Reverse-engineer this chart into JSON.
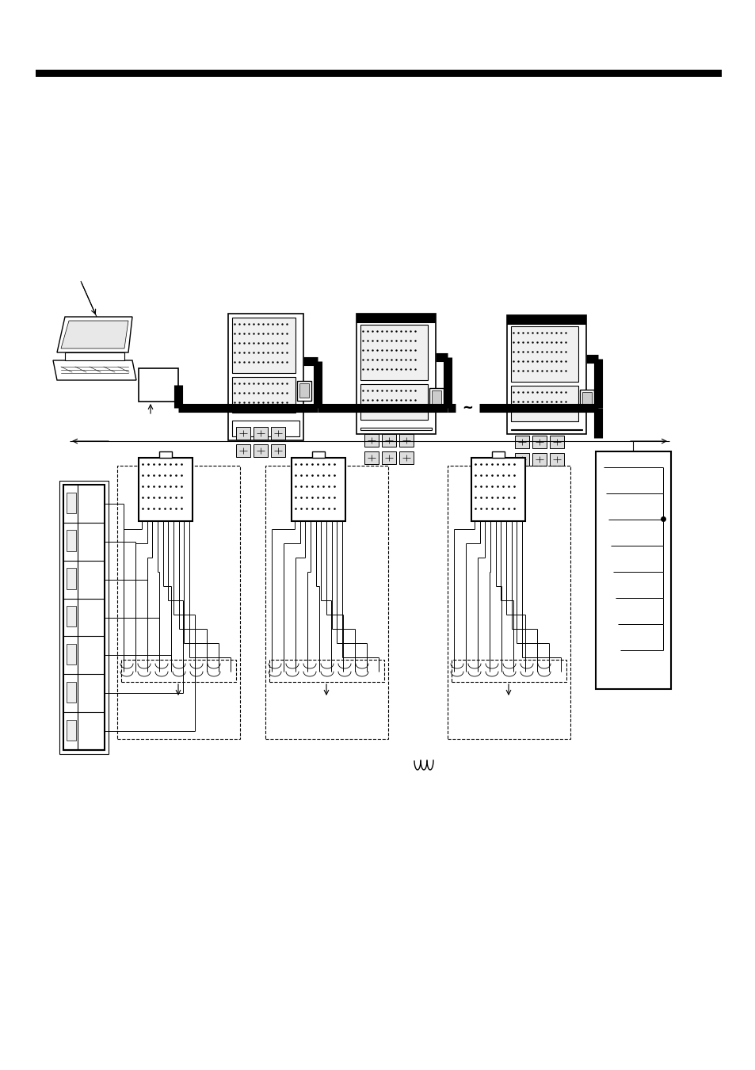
{
  "bg_color": "#ffffff",
  "fig_width": 9.54,
  "fig_height": 13.51,
  "dpi": 100
}
